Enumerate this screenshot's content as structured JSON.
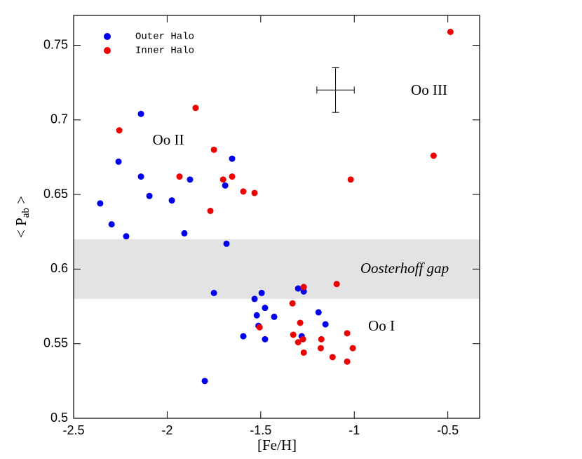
{
  "chart_data": {
    "type": "scatter",
    "xlabel": "[Fe/H]",
    "ylabel": [
      "< P",
      "ab",
      " >"
    ],
    "xlim": [
      -2.5,
      -0.33
    ],
    "ylim": [
      0.5,
      0.77
    ],
    "xticks": [
      -2.5,
      -2,
      -1.5,
      -1,
      -0.5
    ],
    "yticks": [
      0.5,
      0.55,
      0.6,
      0.65,
      0.7,
      0.75
    ],
    "legend": "upper left",
    "annotations": [
      "Oo III",
      "Oo II",
      "Oo I",
      "Oosterhoff gap"
    ],
    "gap_band": [
      0.58,
      0.62
    ],
    "error_cross": {
      "x": -1.1,
      "y": 0.72,
      "xerr": 0.1,
      "yerr": 0.015
    },
    "series": [
      {
        "name": "Outer Halo",
        "color": "#0000ee",
        "x": [
          -2.14,
          -2.26,
          -2.14,
          -2.095,
          -2.358,
          -1.975,
          -1.878,
          -1.653,
          -1.69,
          -2.297,
          -2.219,
          -1.908,
          -1.683,
          -1.75,
          -1.495,
          -1.3,
          -1.27,
          -1.533,
          -1.477,
          -1.521,
          -1.428,
          -1.512,
          -1.191,
          -1.154,
          -1.593,
          -1.477,
          -1.281,
          -1.799
        ],
        "values": [
          0.704,
          0.672,
          0.662,
          0.649,
          0.644,
          0.646,
          0.66,
          0.674,
          0.656,
          0.63,
          0.622,
          0.624,
          0.617,
          0.584,
          0.584,
          0.587,
          0.585,
          0.58,
          0.574,
          0.569,
          0.568,
          0.562,
          0.571,
          0.563,
          0.555,
          0.553,
          0.555,
          0.525
        ]
      },
      {
        "name": "Inner Halo",
        "color": "#ee0000",
        "x": [
          -0.486,
          -1.848,
          -2.256,
          -1.75,
          -1.934,
          -1.653,
          -1.701,
          -1.593,
          -1.533,
          -1.769,
          -0.576,
          -1.019,
          -1.094,
          -1.27,
          -1.33,
          -1.289,
          -1.506,
          -1.038,
          -1.326,
          -1.176,
          -1.274,
          -1.3,
          -1.179,
          -1.008,
          -1.27,
          -1.116,
          -1.038
        ],
        "values": [
          0.759,
          0.708,
          0.693,
          0.68,
          0.662,
          0.662,
          0.66,
          0.652,
          0.651,
          0.639,
          0.676,
          0.66,
          0.59,
          0.588,
          0.577,
          0.564,
          0.561,
          0.557,
          0.556,
          0.553,
          0.553,
          0.551,
          0.547,
          0.547,
          0.544,
          0.541,
          0.538
        ]
      }
    ]
  }
}
